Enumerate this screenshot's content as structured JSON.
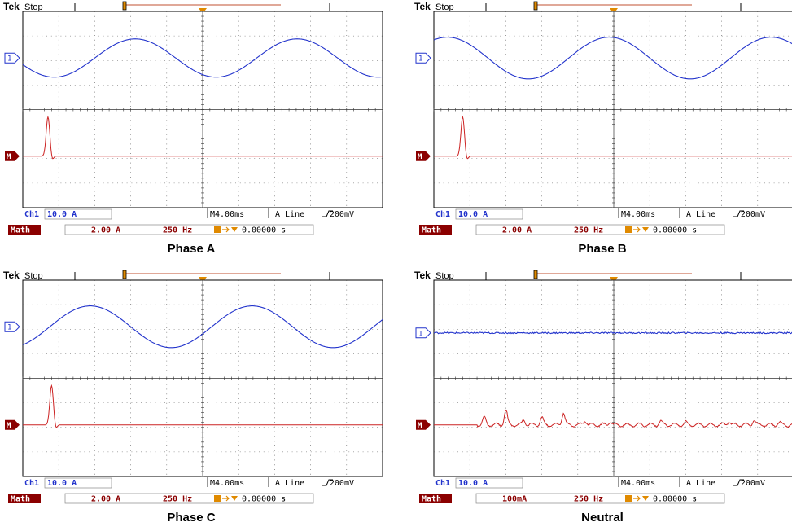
{
  "chart_data": [
    {
      "type": "line",
      "title": "Phase A",
      "header": {
        "brand": "Tek",
        "status": "Stop"
      },
      "channel_label": "Ch1",
      "ch1_scale": "10.0 A",
      "timebase": "M4.00ms",
      "trigger": "A  Line",
      "trigger_level": "200mV",
      "math_label": "Math",
      "math_scale": "2.00 A",
      "math_span": "250 Hz",
      "position": "0.00000 s",
      "ch1_marker": "1",
      "math_marker": "M",
      "ch1_trace": {
        "kind": "sine",
        "amplitude_div": 0.78,
        "offset_div": 2.1,
        "period_div": 4.5,
        "start_phase_deg": 200,
        "noise": 0
      },
      "math_trace": {
        "kind": "spike",
        "offset_div": -1.9,
        "spike_x_div": 0.7,
        "spike_height_div": 1.6,
        "small_peaks": []
      }
    },
    {
      "type": "line",
      "title": "Phase B",
      "header": {
        "brand": "Tek",
        "status": "Stop"
      },
      "channel_label": "Ch1",
      "ch1_scale": "10.0 A",
      "timebase": "M4.00ms",
      "trigger": "A  Line",
      "trigger_level": "200mV",
      "math_label": "Math",
      "math_scale": "2.00 A",
      "math_span": "250 Hz",
      "position": "0.00000 s",
      "ch1_marker": "1",
      "math_marker": "M",
      "ch1_trace": {
        "kind": "sine",
        "amplitude_div": 0.85,
        "offset_div": 2.1,
        "period_div": 4.5,
        "start_phase_deg": 60,
        "noise": 0
      },
      "math_trace": {
        "kind": "spike",
        "offset_div": -1.9,
        "spike_x_div": 0.8,
        "spike_height_div": 1.6,
        "small_peaks": []
      }
    },
    {
      "type": "line",
      "title": "Phase C",
      "header": {
        "brand": "Tek",
        "status": "Stop"
      },
      "channel_label": "Ch1",
      "ch1_scale": "10.0 A",
      "timebase": "M4.00ms",
      "trigger": "A  Line",
      "trigger_level": "200mV",
      "math_label": "Math",
      "math_scale": "2.00 A",
      "math_span": "250 Hz",
      "position": "0.00000 s",
      "ch1_marker": "1",
      "math_marker": "M",
      "ch1_trace": {
        "kind": "sine",
        "amplitude_div": 0.85,
        "offset_div": 2.1,
        "period_div": 4.5,
        "start_phase_deg": 300,
        "noise": 0
      },
      "math_trace": {
        "kind": "spike",
        "offset_div": -1.9,
        "spike_x_div": 0.8,
        "spike_height_div": 1.6,
        "small_peaks": []
      }
    },
    {
      "type": "line",
      "title": "Neutral",
      "header": {
        "brand": "Tek",
        "status": "Stop"
      },
      "channel_label": "Ch1",
      "ch1_scale": "10.0 A",
      "timebase": "M4.00ms",
      "trigger": "A  Line",
      "trigger_level": "200mV",
      "math_label": "Math",
      "math_scale": "100mA",
      "math_span": "250 Hz",
      "position": "0.00000 s",
      "ch1_marker": "1",
      "math_marker": "M",
      "ch1_trace": {
        "kind": "flat",
        "amplitude_div": 0,
        "offset_div": 1.85,
        "period_div": 4.5,
        "start_phase_deg": 0,
        "noise": 0.03
      },
      "math_trace": {
        "kind": "noise",
        "offset_div": -1.9,
        "spike_x_div": 0,
        "spike_height_div": 0,
        "small_peaks": [
          [
            1.4,
            0.3
          ],
          [
            2.0,
            0.6
          ],
          [
            2.5,
            0.2
          ],
          [
            3.0,
            0.3
          ],
          [
            3.6,
            0.5
          ],
          [
            4.2,
            0.2
          ],
          [
            4.9,
            0.15
          ],
          [
            6.3,
            0.15
          ],
          [
            7.0,
            0.1
          ],
          [
            8.2,
            0.15
          ],
          [
            8.9,
            0.2
          ],
          [
            9.6,
            0.1
          ],
          [
            10.4,
            0.12
          ]
        ]
      }
    }
  ]
}
